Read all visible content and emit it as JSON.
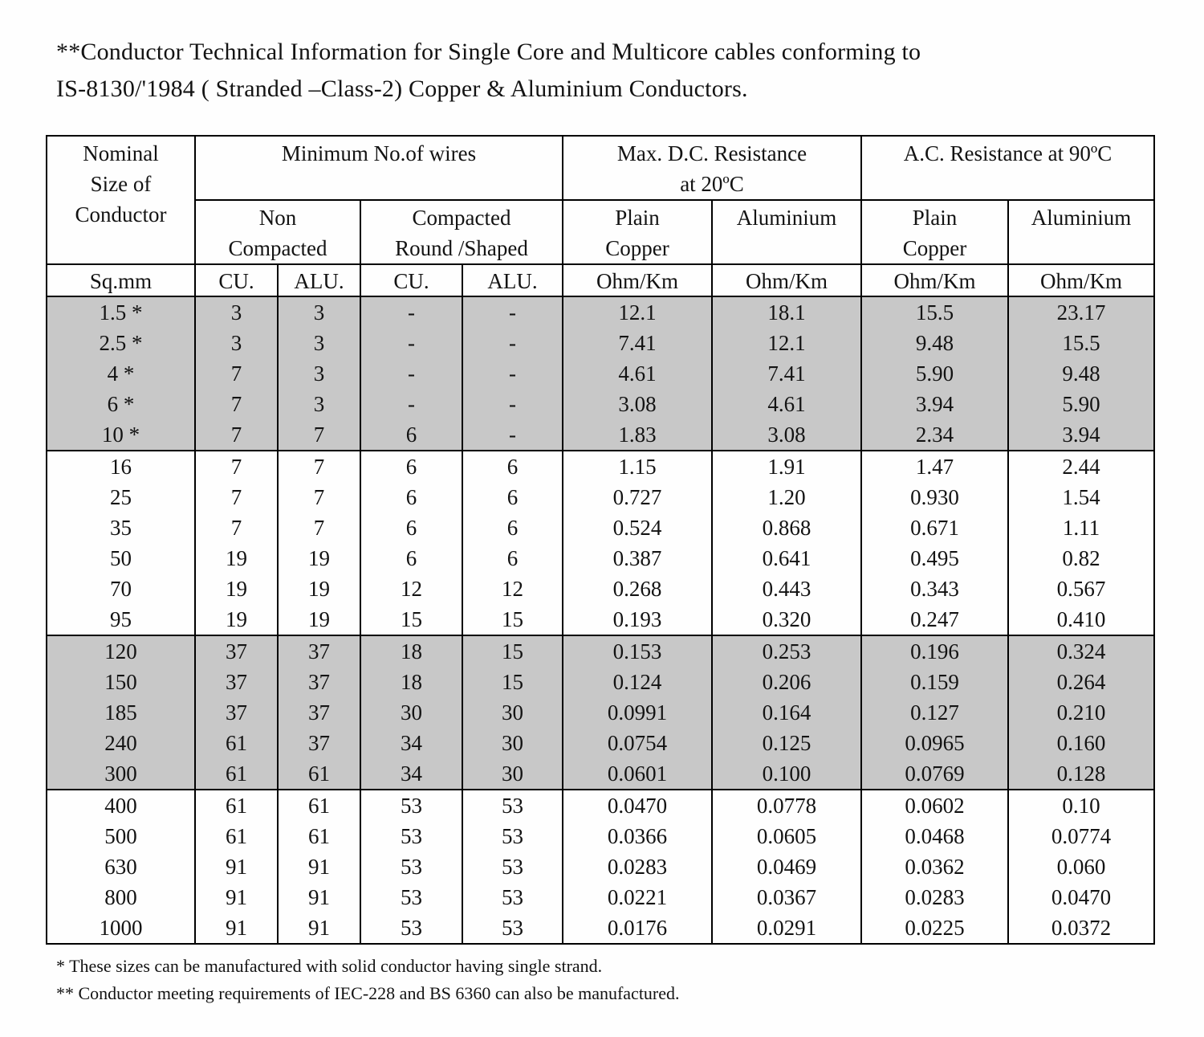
{
  "page": {
    "title": "**Conductor Technical Information for Single Core and Multicore cables conforming to\nIS-8130/'1984 ( Stranded –Class-2) Copper & Aluminium Conductors."
  },
  "colors": {
    "row_shade": "#c8c8c8",
    "border": "#000000"
  },
  "table": {
    "header": {
      "nominal": "Nominal\nSize of\nConductor",
      "min_wires": "Minimum No.of wires",
      "dc_resistance": "Max. D.C. Resistance\nat 20ºC",
      "ac_resistance": "A.C. Resistance at 90ºC",
      "non_compacted": "Non\nCompacted",
      "compacted": "Compacted\nRound /Shaped",
      "plain_copper_dc": "Plain\nCopper",
      "aluminium_dc": "Aluminium",
      "plain_copper_ac": "Plain\nCopper",
      "aluminium_ac": "Aluminium",
      "units": [
        "Sq.mm",
        "CU.",
        "ALU.",
        "CU.",
        "ALU.",
        "Ohm/Km",
        "Ohm/Km",
        "Ohm/Km",
        "Ohm/Km"
      ]
    },
    "rows": [
      {
        "shaded": true,
        "group_end": false,
        "cells": [
          "1.5 *",
          "3",
          "3",
          "-",
          "-",
          "12.1",
          "18.1",
          "15.5",
          "23.17"
        ]
      },
      {
        "shaded": true,
        "group_end": false,
        "cells": [
          "2.5 *",
          "3",
          "3",
          "-",
          "-",
          "7.41",
          "12.1",
          "9.48",
          "15.5"
        ]
      },
      {
        "shaded": true,
        "group_end": false,
        "cells": [
          "4 *",
          "7",
          "3",
          "-",
          "-",
          "4.61",
          "7.41",
          "5.90",
          "9.48"
        ]
      },
      {
        "shaded": true,
        "group_end": false,
        "cells": [
          "6 *",
          "7",
          "3",
          "-",
          "-",
          "3.08",
          "4.61",
          "3.94",
          "5.90"
        ]
      },
      {
        "shaded": true,
        "group_end": true,
        "cells": [
          "10 *",
          "7",
          "7",
          "6",
          "-",
          "1.83",
          "3.08",
          "2.34",
          "3.94"
        ]
      },
      {
        "shaded": false,
        "group_end": false,
        "cells": [
          "16",
          "7",
          "7",
          "6",
          "6",
          "1.15",
          "1.91",
          "1.47",
          "2.44"
        ]
      },
      {
        "shaded": false,
        "group_end": false,
        "cells": [
          "25",
          "7",
          "7",
          "6",
          "6",
          "0.727",
          "1.20",
          "0.930",
          "1.54"
        ]
      },
      {
        "shaded": false,
        "group_end": false,
        "cells": [
          "35",
          "7",
          "7",
          "6",
          "6",
          "0.524",
          "0.868",
          "0.671",
          "1.11"
        ]
      },
      {
        "shaded": false,
        "group_end": false,
        "cells": [
          "50",
          "19",
          "19",
          "6",
          "6",
          "0.387",
          "0.641",
          "0.495",
          "0.82"
        ]
      },
      {
        "shaded": false,
        "group_end": false,
        "cells": [
          "70",
          "19",
          "19",
          "12",
          "12",
          "0.268",
          "0.443",
          "0.343",
          "0.567"
        ]
      },
      {
        "shaded": false,
        "group_end": true,
        "cells": [
          "95",
          "19",
          "19",
          "15",
          "15",
          "0.193",
          "0.320",
          "0.247",
          "0.410"
        ]
      },
      {
        "shaded": true,
        "group_end": false,
        "cells": [
          "120",
          "37",
          "37",
          "18",
          "15",
          "0.153",
          "0.253",
          "0.196",
          "0.324"
        ]
      },
      {
        "shaded": true,
        "group_end": false,
        "cells": [
          "150",
          "37",
          "37",
          "18",
          "15",
          "0.124",
          "0.206",
          "0.159",
          "0.264"
        ]
      },
      {
        "shaded": true,
        "group_end": false,
        "cells": [
          "185",
          "37",
          "37",
          "30",
          "30",
          "0.0991",
          "0.164",
          "0.127",
          "0.210"
        ]
      },
      {
        "shaded": true,
        "group_end": false,
        "cells": [
          "240",
          "61",
          "37",
          "34",
          "30",
          "0.0754",
          "0.125",
          "0.0965",
          "0.160"
        ]
      },
      {
        "shaded": true,
        "group_end": true,
        "cells": [
          "300",
          "61",
          "61",
          "34",
          "30",
          "0.0601",
          "0.100",
          "0.0769",
          "0.128"
        ]
      },
      {
        "shaded": false,
        "group_end": false,
        "cells": [
          "400",
          "61",
          "61",
          "53",
          "53",
          "0.0470",
          "0.0778",
          "0.0602",
          "0.10"
        ]
      },
      {
        "shaded": false,
        "group_end": false,
        "cells": [
          "500",
          "61",
          "61",
          "53",
          "53",
          "0.0366",
          "0.0605",
          "0.0468",
          "0.0774"
        ]
      },
      {
        "shaded": false,
        "group_end": false,
        "cells": [
          "630",
          "91",
          "91",
          "53",
          "53",
          "0.0283",
          "0.0469",
          "0.0362",
          "0.060"
        ]
      },
      {
        "shaded": false,
        "group_end": false,
        "cells": [
          "800",
          "91",
          "91",
          "53",
          "53",
          "0.0221",
          "0.0367",
          "0.0283",
          "0.0470"
        ]
      },
      {
        "shaded": false,
        "group_end": false,
        "cells": [
          "1000",
          "91",
          "91",
          "53",
          "53",
          "0.0176",
          "0.0291",
          "0.0225",
          "0.0372"
        ]
      }
    ]
  },
  "footnotes": [
    "* These sizes can be manufactured with solid conductor having single strand.",
    "** Conductor meeting requirements of IEC-228 and BS 6360 can also be manufactured."
  ]
}
